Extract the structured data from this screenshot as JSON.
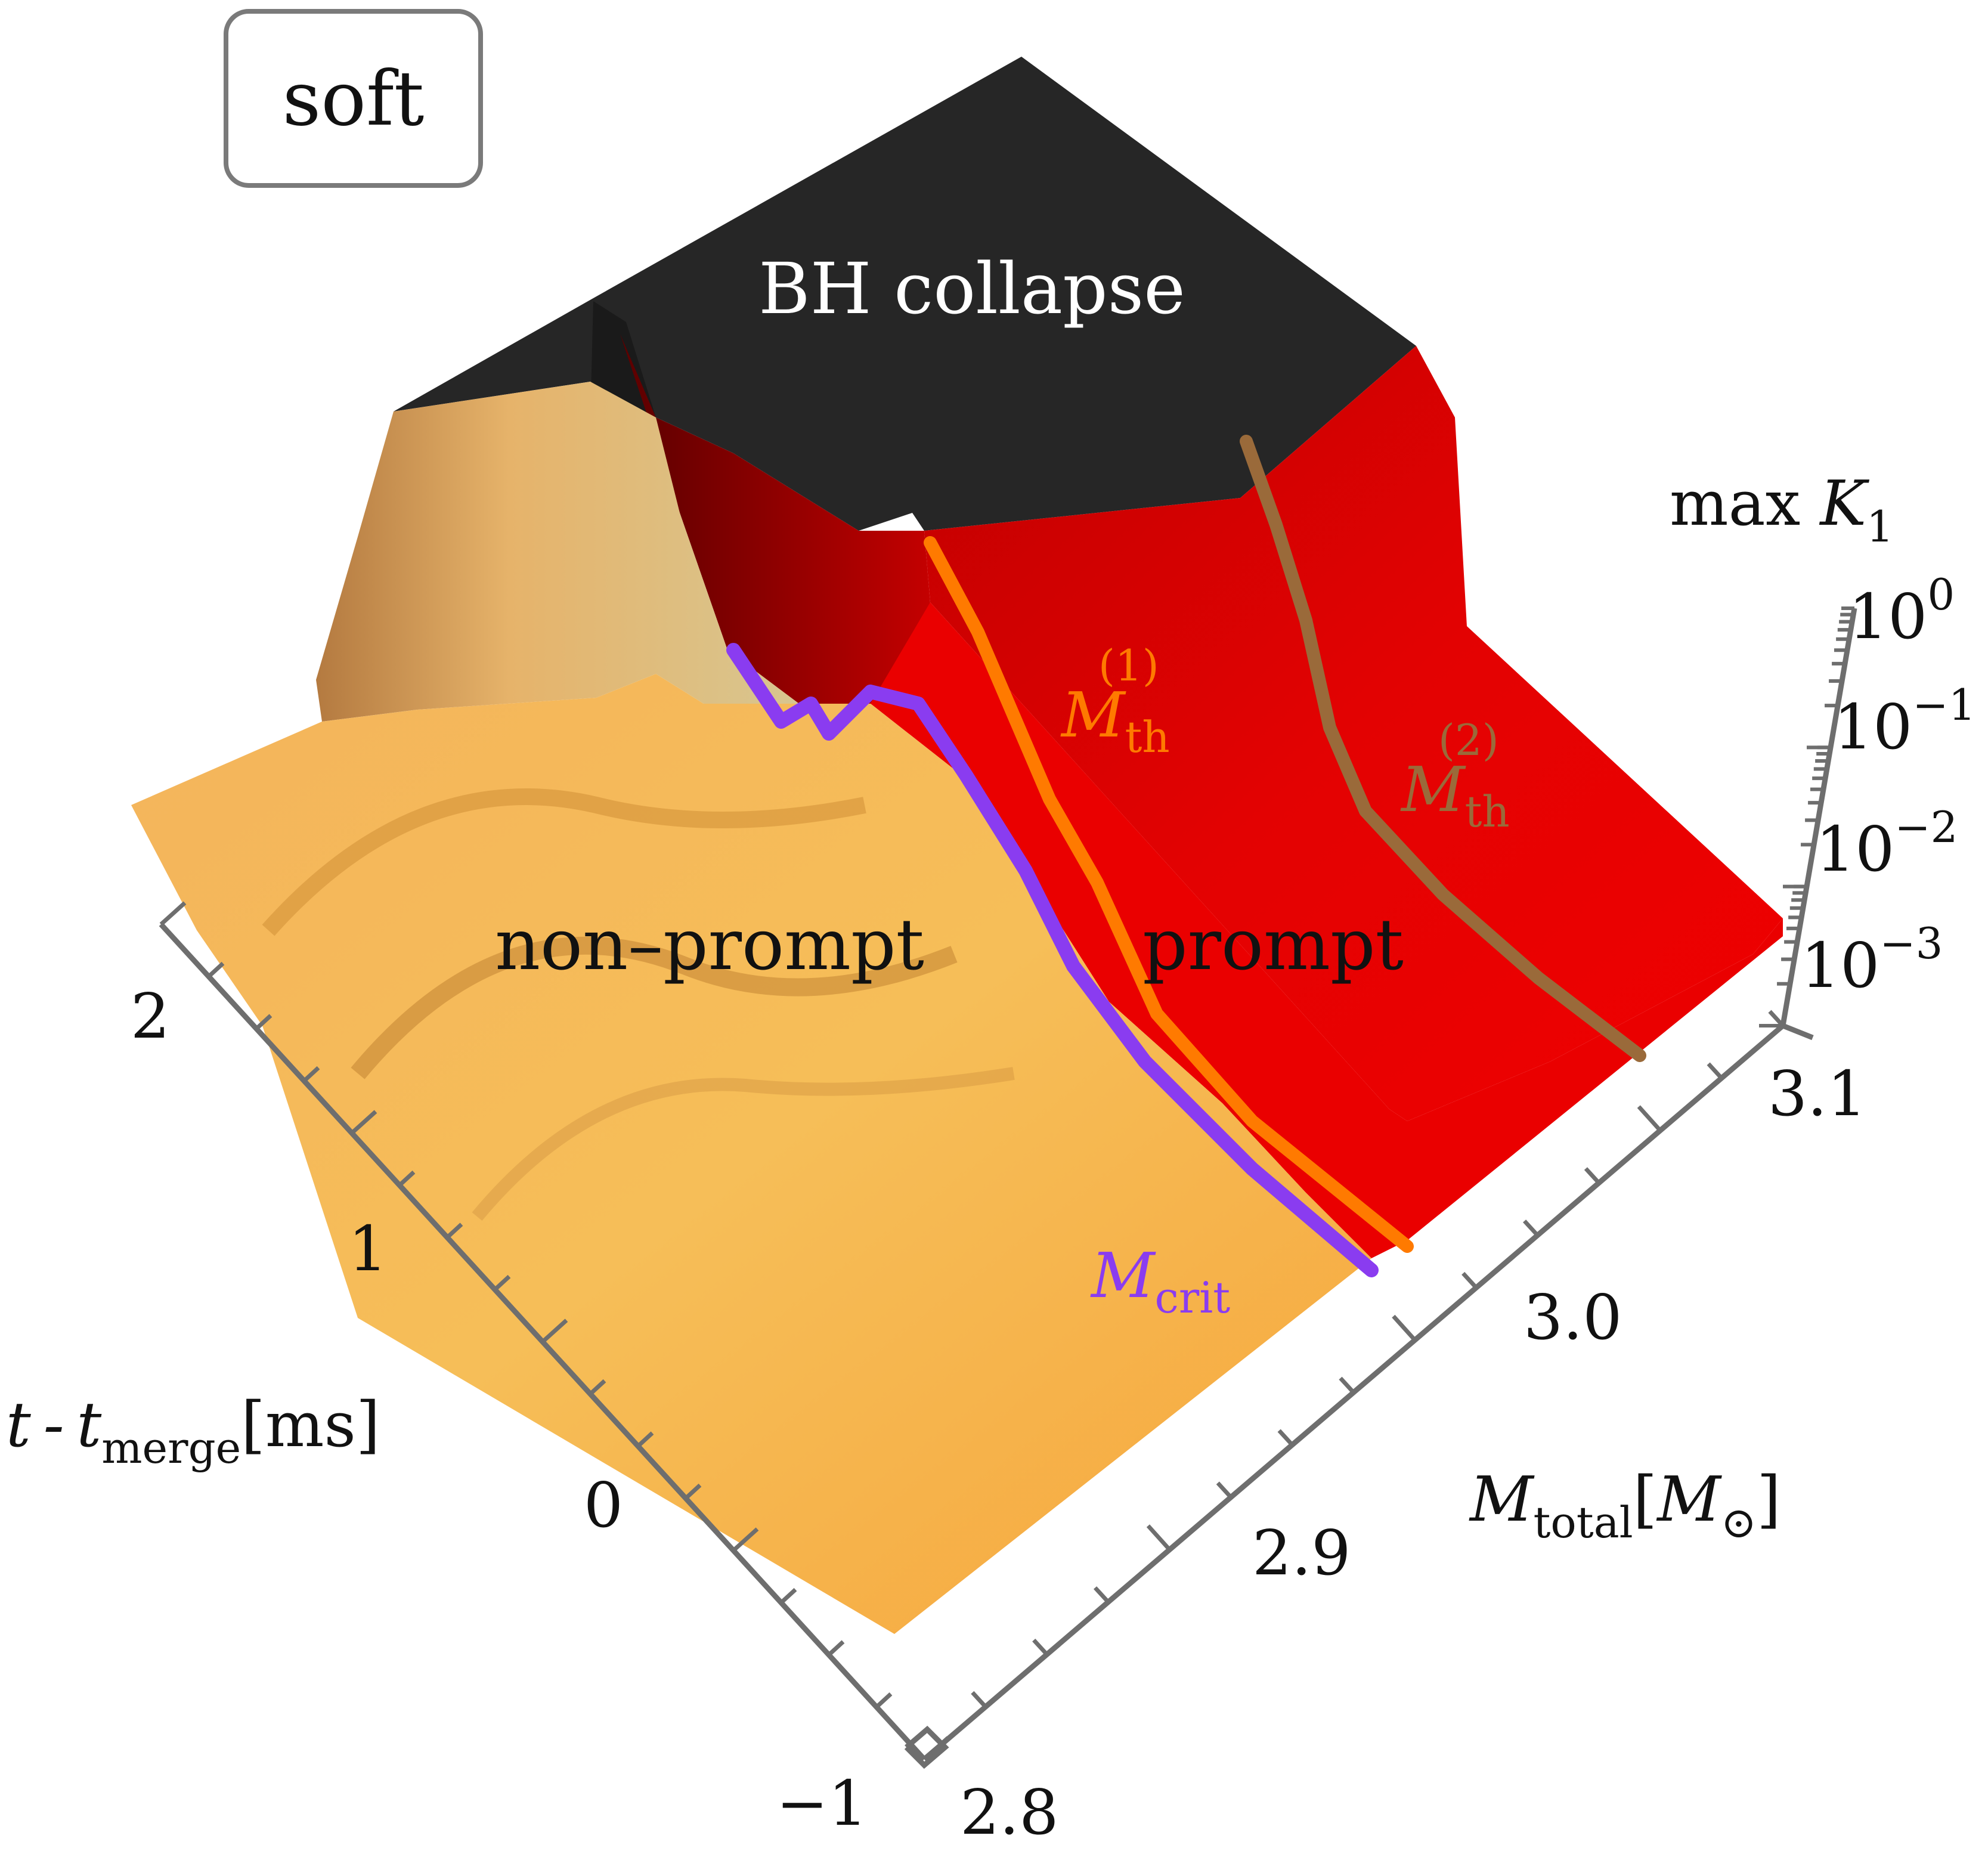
{
  "badge": {
    "label": "soft"
  },
  "chart_data": {
    "type": "surface",
    "title": "",
    "x_axis": {
      "label_main": "t - t",
      "label_sub": "merge",
      "label_unit": "[ms]",
      "ticks": [
        "−1",
        "0",
        "1",
        "2"
      ],
      "range": [
        -1,
        2.3
      ]
    },
    "y_axis": {
      "label_main": "M",
      "label_sub": "total",
      "label_unit_open": "[",
      "label_unit_main": "M",
      "label_unit_sub": "⊙",
      "label_unit_close": "]",
      "ticks": [
        "2.8",
        "2.9",
        "3.0",
        "3.1"
      ],
      "range": [
        2.8,
        3.15
      ]
    },
    "z_axis": {
      "label_main": "max ",
      "label_italic": "K",
      "label_sub": "1",
      "scale": "log",
      "ticks": [
        {
          "base": "10",
          "exp": "−3"
        },
        {
          "base": "10",
          "exp": "−2"
        },
        {
          "base": "10",
          "exp": "−1"
        },
        {
          "base": "10",
          "exp": "0"
        }
      ]
    },
    "regions": [
      {
        "name": "non–prompt",
        "color": "#f5b24a"
      },
      {
        "name": "prompt",
        "color": "#e80000"
      },
      {
        "name": "BH collapse",
        "color": "#252525"
      }
    ],
    "curves": [
      {
        "name": "M",
        "sub": "crit",
        "sup": "",
        "color": "#8a3cf0",
        "mass": 2.96
      },
      {
        "name": "M",
        "sub": "th",
        "sup": "(1)",
        "color": "#ff7a00",
        "mass": 2.975
      },
      {
        "name": "M",
        "sub": "th",
        "sup": "(2)",
        "color": "#9a6a3a",
        "mass": 3.07
      }
    ]
  }
}
